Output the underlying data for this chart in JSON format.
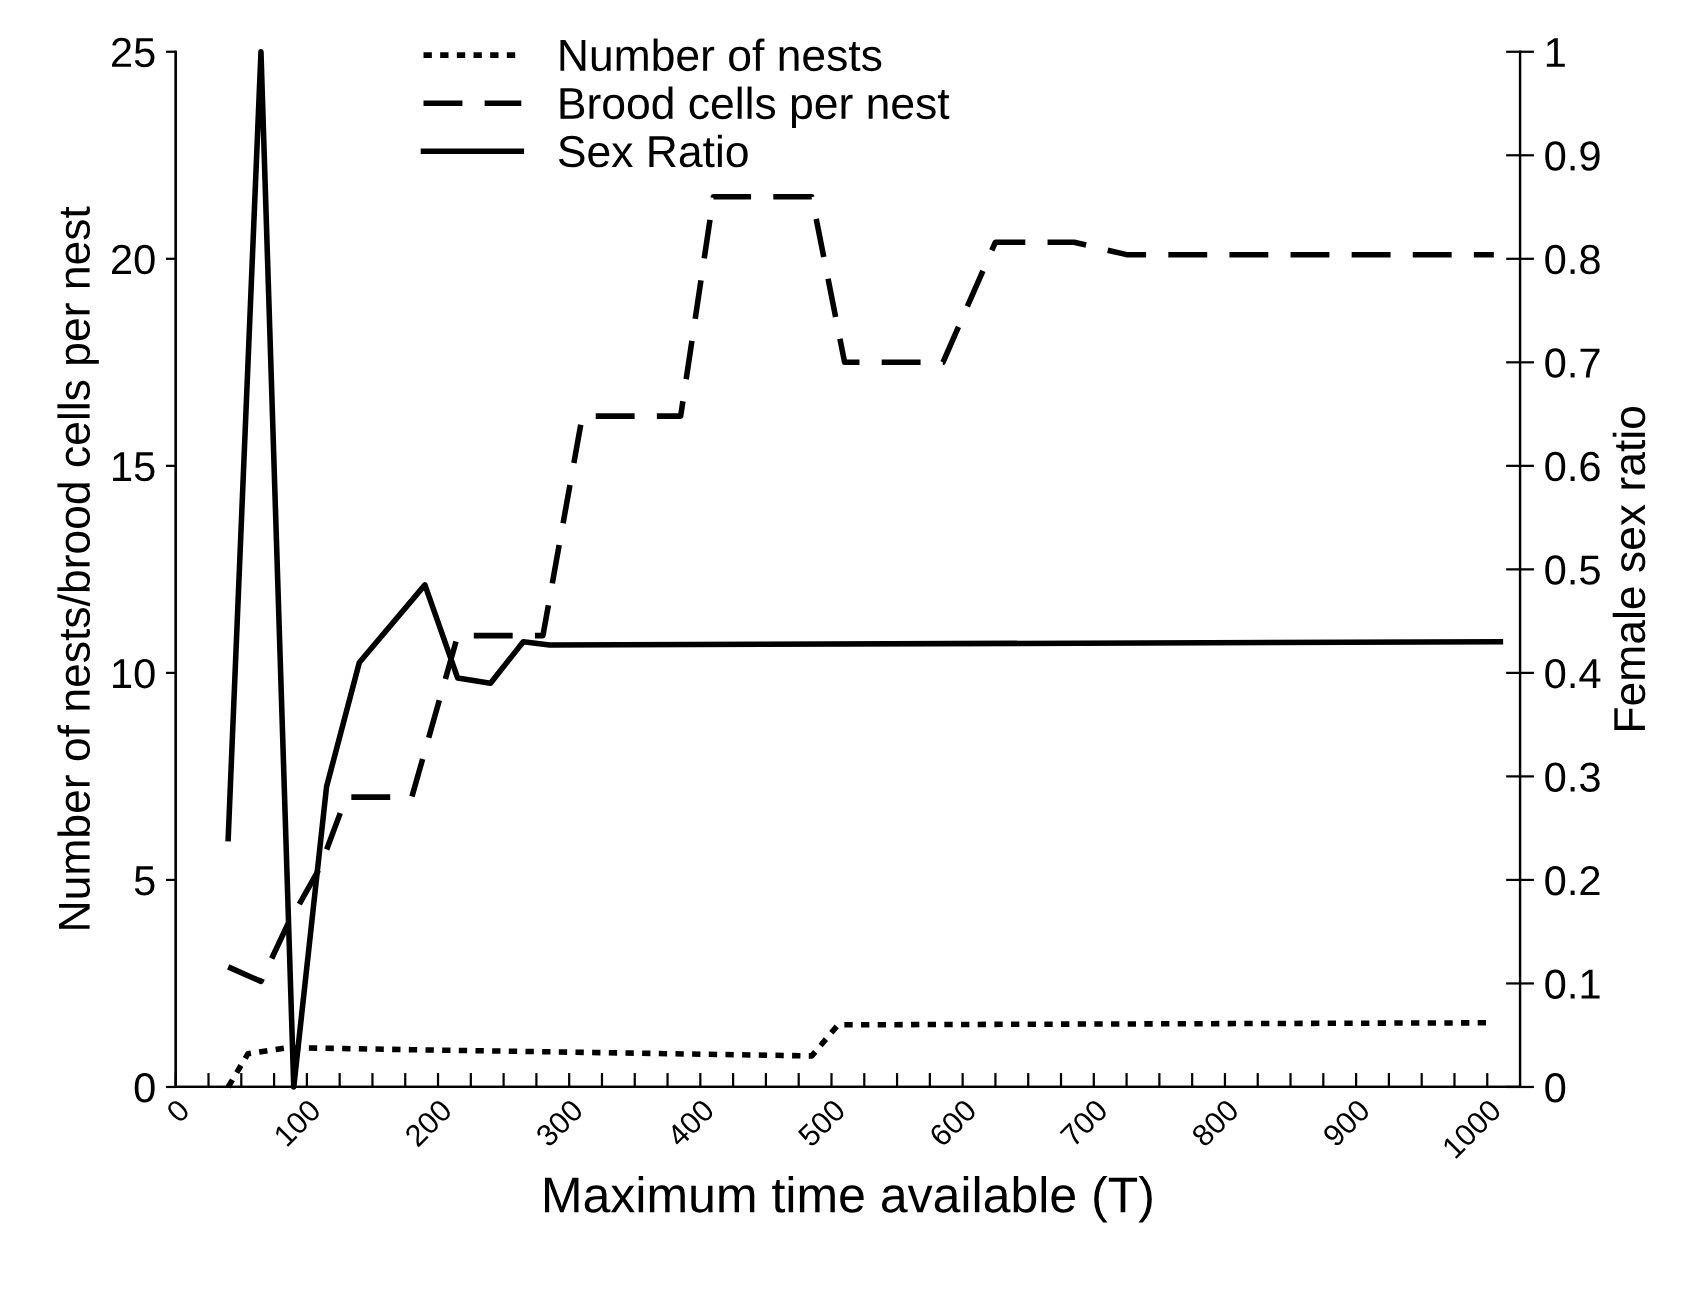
{
  "chart_data": {
    "type": "line",
    "xlabel": "Maximum time available (T)",
    "ylabel": "Number of nests/brood cells per nest",
    "y2label": "Female sex ratio",
    "xlim": [
      0,
      1025
    ],
    "xticks": [
      0,
      {
        "value": 25,
        "label": null
      },
      {
        "value": 50,
        "label": null
      },
      {
        "value": 75,
        "label": null
      },
      100,
      {
        "value": 125,
        "label": null
      },
      {
        "value": 150,
        "label": null
      },
      {
        "value": 175,
        "label": null
      },
      200,
      {
        "value": 225,
        "label": null
      },
      {
        "value": 250,
        "label": null
      },
      {
        "value": 275,
        "label": null
      },
      300,
      {
        "value": 325,
        "label": null
      },
      {
        "value": 350,
        "label": null
      },
      {
        "value": 375,
        "label": null
      },
      400,
      {
        "value": 425,
        "label": null
      },
      {
        "value": 450,
        "label": null
      },
      {
        "value": 475,
        "label": null
      },
      500,
      {
        "value": 525,
        "label": null
      },
      {
        "value": 550,
        "label": null
      },
      {
        "value": 575,
        "label": null
      },
      600,
      {
        "value": 625,
        "label": null
      },
      {
        "value": 650,
        "label": null
      },
      {
        "value": 675,
        "label": null
      },
      700,
      {
        "value": 725,
        "label": null
      },
      {
        "value": 750,
        "label": null
      },
      {
        "value": 775,
        "label": null
      },
      800,
      {
        "value": 825,
        "label": null
      },
      {
        "value": 850,
        "label": null
      },
      {
        "value": 875,
        "label": null
      },
      900,
      {
        "value": 925,
        "label": null
      },
      {
        "value": 950,
        "label": null
      },
      {
        "value": 975,
        "label": null
      },
      1000
    ],
    "ylim": [
      0,
      25
    ],
    "yticks": [
      0,
      5,
      10,
      15,
      20,
      25
    ],
    "y2lim": [
      0,
      1
    ],
    "y2ticks": [
      0,
      0.1,
      0.2,
      0.3,
      0.4,
      0.5,
      0.6,
      0.7,
      0.8,
      0.9,
      1
    ],
    "grid": false,
    "legend": "top",
    "marker": "none",
    "series": [
      {
        "name": "Number of nests",
        "color": "#000000",
        "line_style": "dotted",
        "x": [
          40,
          55,
          85,
          180,
          485,
          505,
          1005
        ],
        "values": [
          0,
          0.8,
          0.95,
          0.9,
          0.75,
          1.5,
          1.55
        ]
      },
      {
        "name": "Brood cells per nest",
        "color": "#000000",
        "line_style": "dashed",
        "x": [
          40,
          65,
          85,
          110,
          130,
          180,
          215,
          280,
          310,
          385,
          410,
          485,
          510,
          585,
          625,
          685,
          725,
          1005
        ],
        "values": [
          2.9,
          2.55,
          3.9,
          5.3,
          7.0,
          7.0,
          10.9,
          10.9,
          16.2,
          16.2,
          21.5,
          21.5,
          17.5,
          17.5,
          20.4,
          20.4,
          20.1,
          20.1
        ]
      },
      {
        "name": "Sex Ratio",
        "color": "#000000",
        "line_style": "solid",
        "axis": "y2",
        "x": [
          40,
          65,
          90,
          115,
          140,
          190,
          215,
          240,
          265,
          285,
          1010
        ],
        "values": [
          0.24,
          1.0,
          0,
          0.29,
          0.41,
          0.485,
          0.395,
          0.39,
          0.43,
          0.427,
          0.43
        ]
      }
    ]
  }
}
